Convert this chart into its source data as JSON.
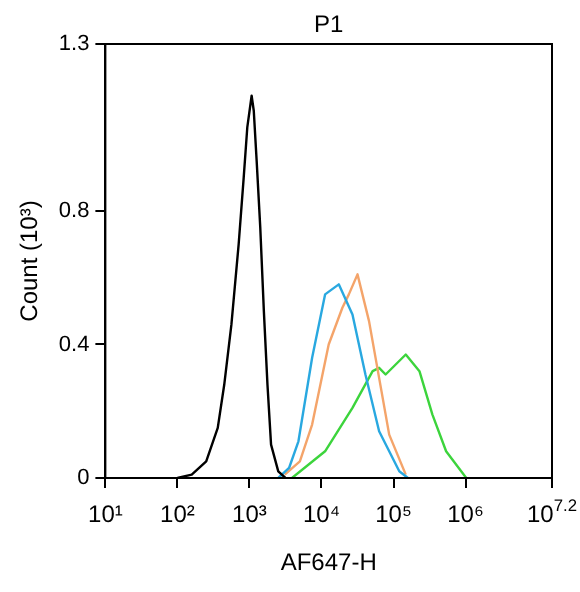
{
  "chart_data": {
    "type": "line",
    "title": "P1",
    "xlabel": "AF647-H",
    "ylabel": "Count (10³)",
    "log": "x",
    "grid": false,
    "legend": false,
    "marker": "none",
    "line_style": "solid",
    "xlim": [
      10,
      15848932
    ],
    "xticks": [
      {
        "value": 10,
        "label": "10¹"
      },
      {
        "value": 100,
        "label": "10²"
      },
      {
        "value": 1000,
        "label": "10³"
      },
      {
        "value": 10000,
        "label": "10⁴"
      },
      {
        "value": 100000,
        "label": "10⁵"
      },
      {
        "value": 1000000,
        "label": "10⁶"
      },
      {
        "value": 15848932,
        "label": "10$^{7.2}$"
      }
    ],
    "ylim": [
      0,
      1.3
    ],
    "yticks": [
      0,
      0.4,
      0.8,
      1.3
    ],
    "series": [
      {
        "color": "#000000",
        "x": [
          100,
          158,
          251,
          363,
          447,
          562,
          708,
          832,
          933,
          1072,
          1148,
          1259,
          1413,
          1585,
          1778,
          1995,
          2512,
          3162
        ],
        "values": [
          0,
          0.01,
          0.05,
          0.15,
          0.28,
          0.46,
          0.7,
          0.9,
          1.05,
          1.145,
          1.1,
          0.95,
          0.75,
          0.5,
          0.28,
          0.1,
          0.02,
          0
        ]
      },
      {
        "color": "#29a8e0",
        "x": [
          2512,
          3548,
          4786,
          7413,
          11220,
          17378,
          26915,
          40738,
          63096,
          120226,
          158489
        ],
        "values": [
          0,
          0.03,
          0.11,
          0.36,
          0.55,
          0.58,
          0.49,
          0.31,
          0.14,
          0.02,
          0
        ]
      },
      {
        "color": "#f4a46a",
        "x": [
          3090,
          5012,
          7413,
          12589,
          19498,
          23988,
          31623,
          45709,
          63096,
          87096,
          147911
        ],
        "values": [
          0.01,
          0.05,
          0.16,
          0.4,
          0.51,
          0.55,
          0.61,
          0.47,
          0.3,
          0.13,
          0.01
        ]
      },
      {
        "color": "#3cd43c",
        "x": [
          3890,
          11220,
          26915,
          51286,
          63096,
          77625,
          147911,
          229087,
          346737,
          537032,
          1023293
        ],
        "values": [
          0,
          0.08,
          0.21,
          0.32,
          0.33,
          0.31,
          0.37,
          0.32,
          0.19,
          0.08,
          0
        ]
      }
    ]
  }
}
